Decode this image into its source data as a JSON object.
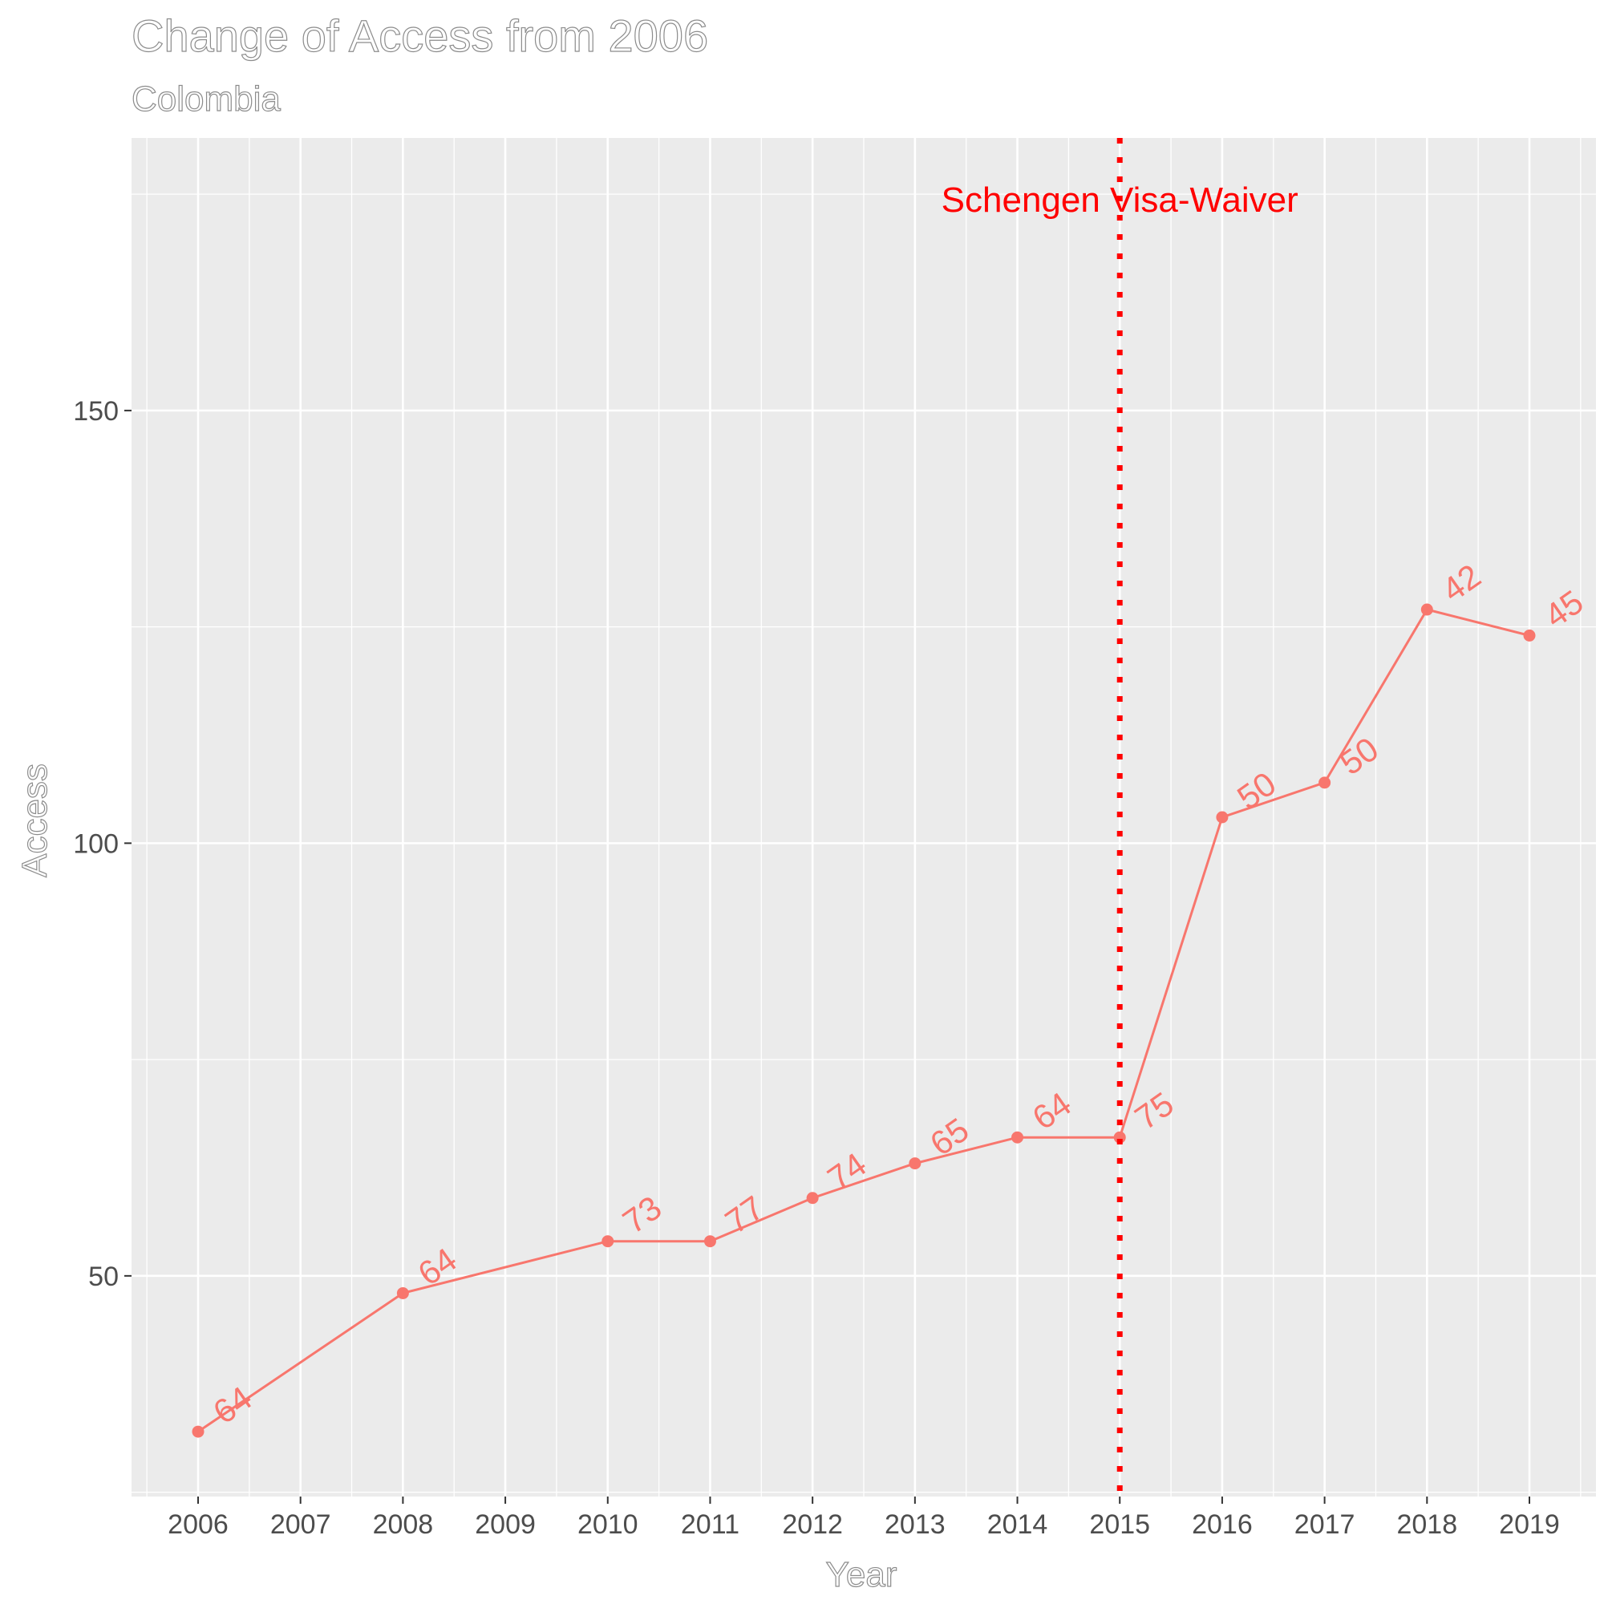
{
  "chart_data": {
    "type": "line",
    "title": "Change of Access from 2006",
    "subtitle": "Colombia",
    "xlabel": "Year",
    "ylabel": "Access",
    "x_ticks": [
      "2006",
      "2007",
      "2008",
      "2009",
      "2010",
      "2011",
      "2012",
      "2013",
      "2014",
      "2015",
      "2016",
      "2017",
      "2018",
      "2019"
    ],
    "y_ticks": [
      50,
      100,
      150
    ],
    "xlim": [
      2005.35,
      2019.65
    ],
    "ylim": [
      24.5,
      181.5
    ],
    "grid": true,
    "series": [
      {
        "color": "#f8766d",
        "points": [
          {
            "x": 2006,
            "y": 32,
            "label": "64"
          },
          {
            "x": 2008,
            "y": 48,
            "label": "64"
          },
          {
            "x": 2010,
            "y": 54,
            "label": "73"
          },
          {
            "x": 2011,
            "y": 54,
            "label": "77"
          },
          {
            "x": 2012,
            "y": 59,
            "label": "74"
          },
          {
            "x": 2013,
            "y": 63,
            "label": "65"
          },
          {
            "x": 2014,
            "y": 66,
            "label": "64"
          },
          {
            "x": 2015,
            "y": 66,
            "label": "75"
          },
          {
            "x": 2016,
            "y": 103,
            "label": "50"
          },
          {
            "x": 2017,
            "y": 107,
            "label": "50"
          },
          {
            "x": 2018,
            "y": 127,
            "label": "42"
          },
          {
            "x": 2019,
            "y": 124,
            "label": "45"
          }
        ]
      }
    ],
    "annotation": {
      "x": 2015,
      "text": "Schengen Visa-Waiver",
      "color": "#ff0000",
      "line_style": "dotted"
    },
    "panel_background": "#ebebeb",
    "grid_color": "#ffffff"
  }
}
